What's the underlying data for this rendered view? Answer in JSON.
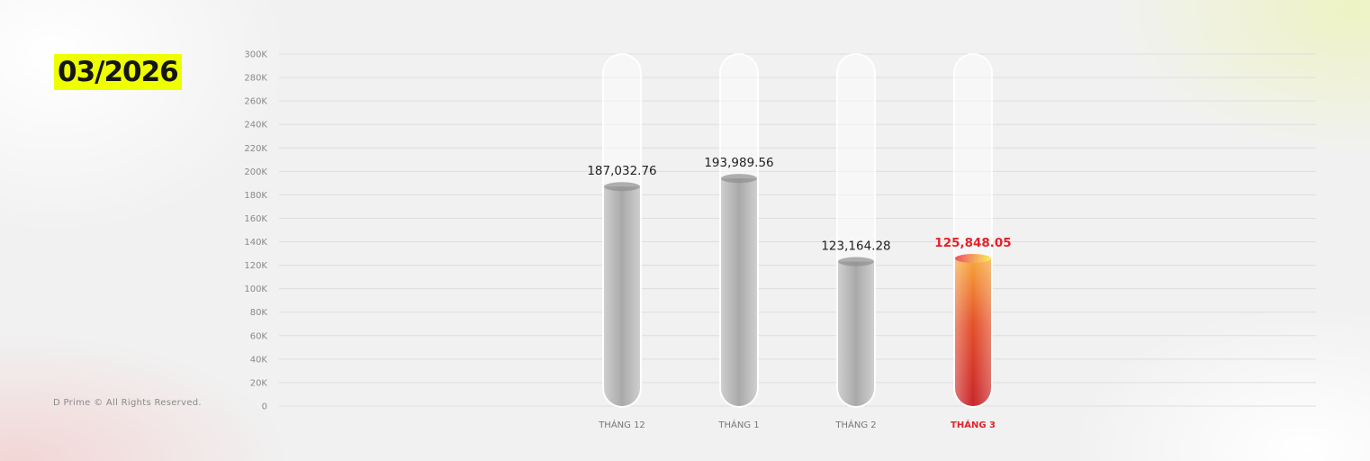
{
  "period_label": "03/2026",
  "footer": "D Prime © All Rights Reserved.",
  "colors": {
    "highlight": "#e5222a",
    "date_bg": "#eeff00",
    "bar_gray": "#b5b5b5"
  },
  "chart_data": {
    "type": "bar",
    "style": "test-tube",
    "categories": [
      "THÁNG 12",
      "THÁNG 1",
      "THÁNG 2",
      "THÁNG 3"
    ],
    "values": [
      187032.76,
      193989.56,
      123164.28,
      125848.05
    ],
    "data_labels": [
      "187,032.76",
      "193,989.56",
      "123,164.28",
      "125,848.05"
    ],
    "highlighted_index": 3,
    "ylim": [
      0,
      300000
    ],
    "y_ticks": [
      "0",
      "20K",
      "40K",
      "60K",
      "80K",
      "100K",
      "120K",
      "140K",
      "160K",
      "180K",
      "200K",
      "220K",
      "240K",
      "260K",
      "280K",
      "300K"
    ],
    "grid": true,
    "xlabel": "",
    "ylabel": "",
    "title": ""
  }
}
